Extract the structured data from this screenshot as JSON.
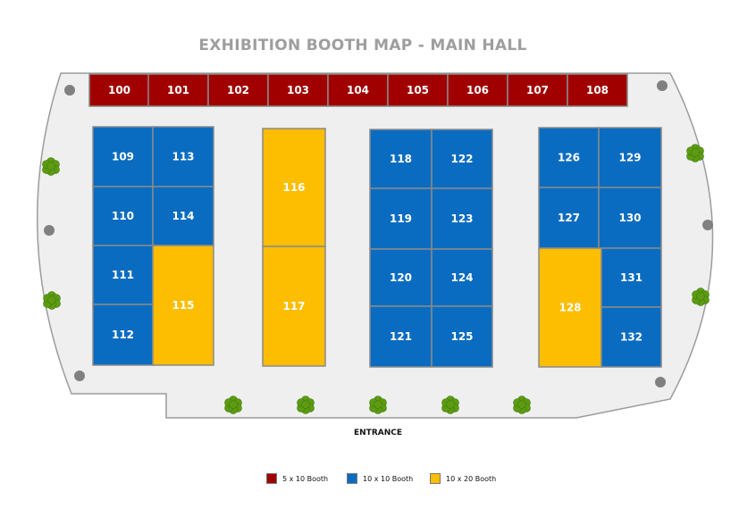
{
  "title": "EXHIBITION BOOTH MAP - MAIN HALL",
  "entrance": "ENTRANCE",
  "colors": {
    "small": "#a10000",
    "medium": "#0a6cc0",
    "large": "#fdbd00",
    "hall": "#efefef",
    "outline": "#9c9c9c",
    "tree": "#5c9b12",
    "pillar": "#808080"
  },
  "legend": [
    {
      "label": "5 x 10 Booth",
      "color": "#a10000"
    },
    {
      "label": "10 x 10 Booth",
      "color": "#0a6cc0"
    },
    {
      "label": "10 x 20 Booth",
      "color": "#fdbd00"
    }
  ],
  "booths": [
    {
      "number": "100",
      "size": "5 x 10 Booth"
    },
    {
      "number": "101",
      "size": "5 x 10 Booth"
    },
    {
      "number": "102",
      "size": "5 x 10 Booth"
    },
    {
      "number": "103",
      "size": "5 x 10 Booth"
    },
    {
      "number": "104",
      "size": "5 x 10 Booth"
    },
    {
      "number": "105",
      "size": "5 x 10 Booth"
    },
    {
      "number": "106",
      "size": "5 x 10 Booth"
    },
    {
      "number": "107",
      "size": "5 x 10 Booth"
    },
    {
      "number": "108",
      "size": "5 x 10 Booth"
    },
    {
      "number": "109",
      "size": "10 x 10 Booth"
    },
    {
      "number": "110",
      "size": "10 x 10 Booth"
    },
    {
      "number": "111",
      "size": "10 x 10 Booth"
    },
    {
      "number": "112",
      "size": "10 x 10 Booth"
    },
    {
      "number": "113",
      "size": "10 x 10 Booth"
    },
    {
      "number": "114",
      "size": "10 x 10 Booth"
    },
    {
      "number": "115",
      "size": "10 x 20 Booth"
    },
    {
      "number": "116",
      "size": "10 x 20 Booth"
    },
    {
      "number": "117",
      "size": "10 x 20 Booth"
    },
    {
      "number": "118",
      "size": "10 x 10 Booth"
    },
    {
      "number": "119",
      "size": "10 x 10 Booth"
    },
    {
      "number": "120",
      "size": "10 x 10 Booth"
    },
    {
      "number": "121",
      "size": "10 x 10 Booth"
    },
    {
      "number": "122",
      "size": "10 x 10 Booth"
    },
    {
      "number": "123",
      "size": "10 x 10 Booth"
    },
    {
      "number": "124",
      "size": "10 x 10 Booth"
    },
    {
      "number": "125",
      "size": "10 x 10 Booth"
    },
    {
      "number": "126",
      "size": "10 x 10 Booth"
    },
    {
      "number": "127",
      "size": "10 x 10 Booth"
    },
    {
      "number": "128",
      "size": "10 x 20 Booth"
    },
    {
      "number": "129",
      "size": "10 x 10 Booth"
    },
    {
      "number": "130",
      "size": "10 x 10 Booth"
    },
    {
      "number": "131",
      "size": "10 x 10 Booth"
    },
    {
      "number": "132",
      "size": "10 x 10 Booth"
    }
  ]
}
